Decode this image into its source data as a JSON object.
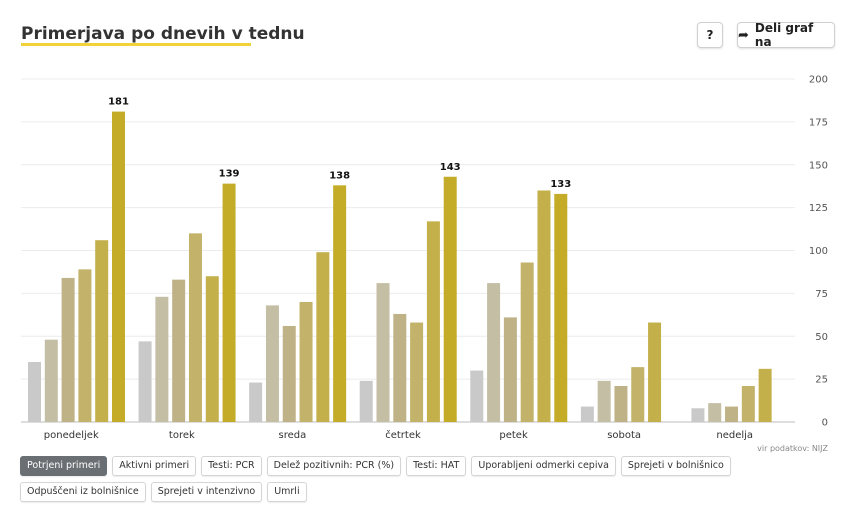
{
  "title": "Primerjava po dnevih v tednu",
  "buttons": {
    "help_label": "?",
    "share_label": "Deli graf na",
    "share_icon": "share-arrow-icon"
  },
  "source": "vir podatkov: NIJZ",
  "tabs": [
    {
      "label": "Potrjeni primeri",
      "active": true
    },
    {
      "label": "Aktivni primeri",
      "active": false
    },
    {
      "label": "Testi: PCR",
      "active": false
    },
    {
      "label": "Delež pozitivnih: PCR (%)",
      "active": false
    },
    {
      "label": "Testi: HAT",
      "active": false
    },
    {
      "label": "Uporabljeni odmerki cepiva",
      "active": false
    },
    {
      "label": "Sprejeti v bolnišnico",
      "active": false
    },
    {
      "label": "Odpuščeni iz bolnišnice",
      "active": false
    },
    {
      "label": "Sprejeti v intenzivno",
      "active": false
    },
    {
      "label": "Umrli",
      "active": false
    }
  ],
  "chart_data": {
    "type": "bar",
    "categories": [
      "ponedeljek",
      "torek",
      "sreda",
      "četrtek",
      "petek",
      "sobota",
      "nedelja"
    ],
    "series": [
      {
        "values": [
          35,
          47,
          23,
          24,
          30,
          9,
          8
        ]
      },
      {
        "values": [
          48,
          73,
          68,
          81,
          81,
          24,
          11
        ]
      },
      {
        "values": [
          84,
          83,
          56,
          63,
          61,
          21,
          9
        ]
      },
      {
        "values": [
          89,
          110,
          70,
          58,
          93,
          32,
          21
        ]
      },
      {
        "values": [
          106,
          85,
          99,
          117,
          135,
          58,
          31
        ]
      },
      {
        "values": [
          181,
          139,
          138,
          143,
          133,
          null,
          null
        ]
      }
    ],
    "series_colors": [
      "#c9c9c9",
      "#c4bea4",
      "#bfb287",
      "#c3b26a",
      "#c4b04a",
      "#c4ac28"
    ],
    "data_labels": [
      181,
      139,
      138,
      143,
      133,
      null,
      null
    ],
    "ylim": [
      0,
      200
    ],
    "yticks": [
      0,
      25,
      50,
      75,
      100,
      125,
      150,
      175,
      200
    ],
    "grid": true,
    "y_axis_position": "right"
  }
}
